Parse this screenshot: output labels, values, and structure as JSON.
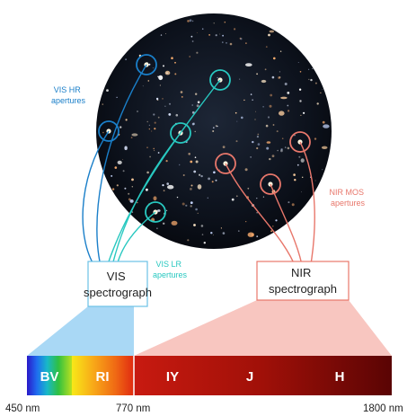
{
  "labels": {
    "vis_hr": [
      "VIS HR",
      "apertures"
    ],
    "vis_lr": [
      "VIS LR",
      "apertures"
    ],
    "nir_mos": [
      "NIR MOS",
      "apertures"
    ]
  },
  "spectrographs": {
    "vis": [
      "VIS",
      "spectrograph"
    ],
    "nir": [
      "NIR",
      "spectrograph"
    ]
  },
  "bands": [
    "BV",
    "RI",
    "IY",
    "J",
    "H"
  ],
  "wavelengths": [
    "450 nm",
    "770 nm",
    "1800 nm"
  ],
  "colors": {
    "vis_hr": "#1a7fc9",
    "vis_lr": "#28c8c0",
    "nir": "#e8776b",
    "vis_box": "#6cc1e6",
    "nir_box": "#e8776b",
    "vis_fan": "#a9d8f5",
    "nir_fan": "#f8c6c0"
  }
}
